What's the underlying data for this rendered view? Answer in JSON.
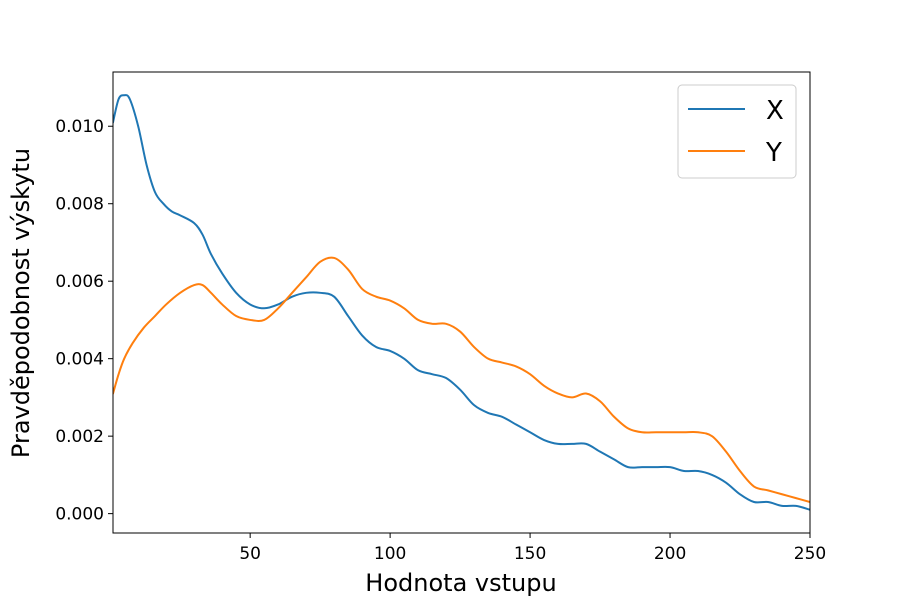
{
  "chart_data": {
    "type": "line",
    "title": "",
    "xlabel": "Hodnota vstupu",
    "ylabel": "Pravděpodobnost výskytu",
    "xlim": [
      1,
      250
    ],
    "ylim": [
      -0.0005,
      0.0114
    ],
    "xticks": [
      50,
      100,
      150,
      200,
      250
    ],
    "xtick_labels": [
      "50",
      "100",
      "150",
      "200",
      "250"
    ],
    "yticks": [
      0.0,
      0.002,
      0.004,
      0.006,
      0.008,
      0.01
    ],
    "ytick_labels": [
      "0.000",
      "0.002",
      "0.004",
      "0.006",
      "0.008",
      "0.010"
    ],
    "grid": false,
    "legend_position": "top-right",
    "series": [
      {
        "name": "X",
        "color": "#1f77b4",
        "x": [
          1,
          3,
          5,
          7,
          10,
          13,
          16,
          19,
          22,
          25,
          30,
          33,
          36,
          40,
          45,
          50,
          55,
          60,
          65,
          70,
          75,
          80,
          85,
          90,
          95,
          100,
          105,
          110,
          115,
          120,
          125,
          130,
          135,
          140,
          145,
          150,
          155,
          160,
          165,
          170,
          175,
          180,
          185,
          190,
          195,
          200,
          205,
          210,
          215,
          220,
          225,
          230,
          235,
          240,
          245,
          250
        ],
        "y": [
          0.0101,
          0.0107,
          0.0108,
          0.0107,
          0.01,
          0.009,
          0.0083,
          0.008,
          0.0078,
          0.0077,
          0.0075,
          0.0072,
          0.0067,
          0.0062,
          0.0057,
          0.0054,
          0.0053,
          0.0054,
          0.0056,
          0.0057,
          0.0057,
          0.0056,
          0.0051,
          0.0046,
          0.0043,
          0.0042,
          0.004,
          0.0037,
          0.0036,
          0.0035,
          0.0032,
          0.0028,
          0.0026,
          0.0025,
          0.0023,
          0.0021,
          0.0019,
          0.0018,
          0.0018,
          0.0018,
          0.0016,
          0.0014,
          0.0012,
          0.0012,
          0.0012,
          0.0012,
          0.0011,
          0.0011,
          0.001,
          0.0008,
          0.0005,
          0.0003,
          0.0003,
          0.0002,
          0.0002,
          0.0001
        ]
      },
      {
        "name": "Y",
        "color": "#ff7f0e",
        "x": [
          1,
          3,
          5,
          8,
          12,
          16,
          20,
          25,
          30,
          33,
          36,
          40,
          45,
          50,
          55,
          60,
          65,
          70,
          75,
          80,
          85,
          90,
          95,
          100,
          105,
          110,
          115,
          120,
          125,
          130,
          135,
          140,
          145,
          150,
          155,
          160,
          165,
          170,
          175,
          180,
          185,
          190,
          195,
          200,
          205,
          210,
          215,
          220,
          225,
          230,
          235,
          240,
          245,
          250
        ],
        "y": [
          0.0031,
          0.0036,
          0.004,
          0.0044,
          0.0048,
          0.0051,
          0.0054,
          0.0057,
          0.0059,
          0.0059,
          0.0057,
          0.0054,
          0.0051,
          0.005,
          0.005,
          0.0053,
          0.0057,
          0.0061,
          0.0065,
          0.0066,
          0.0063,
          0.0058,
          0.0056,
          0.0055,
          0.0053,
          0.005,
          0.0049,
          0.0049,
          0.0047,
          0.0043,
          0.004,
          0.0039,
          0.0038,
          0.0036,
          0.0033,
          0.0031,
          0.003,
          0.0031,
          0.0029,
          0.0025,
          0.0022,
          0.0021,
          0.0021,
          0.0021,
          0.0021,
          0.0021,
          0.002,
          0.0016,
          0.0011,
          0.0007,
          0.0006,
          0.0005,
          0.0004,
          0.0003
        ]
      }
    ]
  }
}
